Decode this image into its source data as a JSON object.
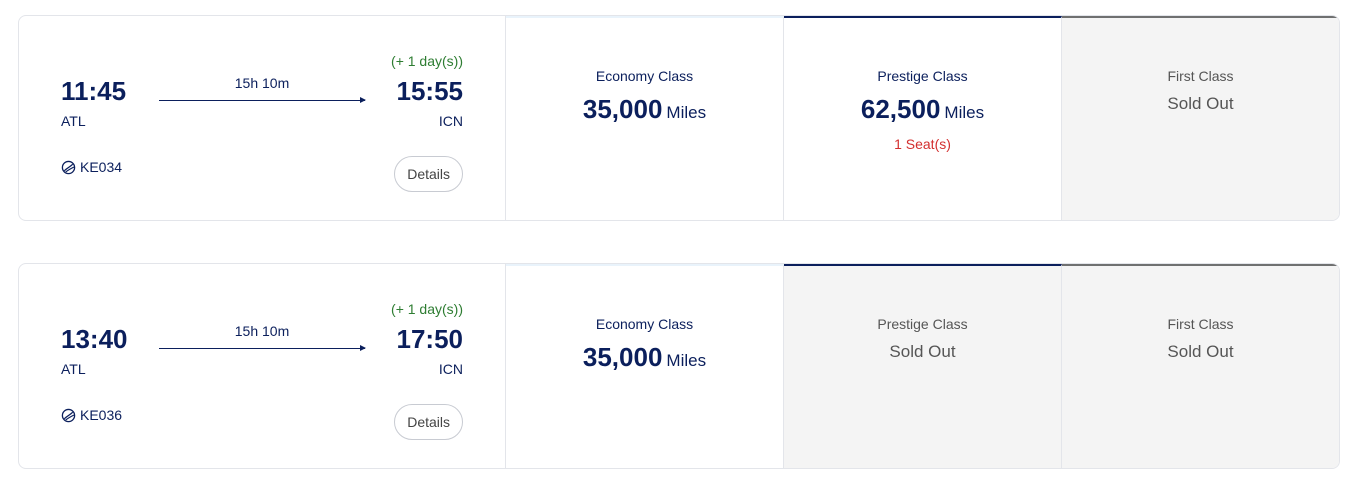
{
  "flights": [
    {
      "dep_time": "11:45",
      "dep_code": "ATL",
      "arr_time": "15:55",
      "arr_code": "ICN",
      "duration": "15h 10m",
      "next_day": "(+ 1 day(s))",
      "flight_no": "KE034",
      "details_label": "Details",
      "fares": {
        "economy": {
          "class": "Economy Class",
          "miles": "35,000",
          "unit": "Miles"
        },
        "prestige": {
          "class": "Prestige Class",
          "miles": "62,500",
          "unit": "Miles",
          "seats": "1 Seat(s)"
        },
        "first": {
          "class": "First Class",
          "status": "Sold Out"
        }
      }
    },
    {
      "dep_time": "13:40",
      "dep_code": "ATL",
      "arr_time": "17:50",
      "arr_code": "ICN",
      "duration": "15h 10m",
      "next_day": "(+ 1 day(s))",
      "flight_no": "KE036",
      "details_label": "Details",
      "fares": {
        "economy": {
          "class": "Economy Class",
          "miles": "35,000",
          "unit": "Miles"
        },
        "prestige": {
          "class": "Prestige Class",
          "status": "Sold Out"
        },
        "first": {
          "class": "First Class",
          "status": "Sold Out"
        }
      }
    }
  ],
  "icons": {
    "airline": "korean-air-logo-icon",
    "arrow": "arrow-right-icon"
  },
  "colors": {
    "navy": "#0b1f5c",
    "green": "#2e7d32",
    "red": "#d32f2f",
    "soldout_bg": "#f4f4f4",
    "prestige_bar": "#0b1f5c",
    "first_bar": "#6f7070"
  }
}
